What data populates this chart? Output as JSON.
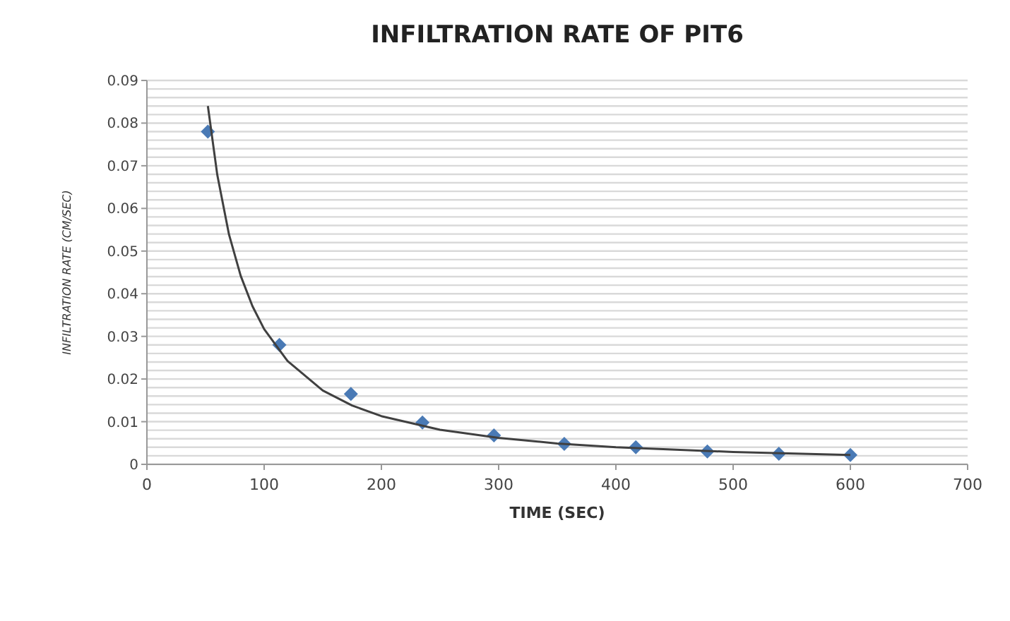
{
  "chart_data": {
    "type": "scatter",
    "title": "INFILTRATION RATE OF PIT6",
    "xlabel": "TIME (SEC)",
    "ylabel": "INFILTRATION RATE (CM/SEC)",
    "x": [
      52,
      113,
      174,
      235,
      296,
      356,
      417,
      478,
      539,
      600
    ],
    "series": [
      {
        "color": "#4a7ab5",
        "marker": "diamond",
        "values": [
          0.078,
          0.028,
          0.0165,
          0.0098,
          0.0068,
          0.0048,
          0.004,
          0.003,
          0.0025,
          0.0022
        ]
      },
      {
        "type": "line",
        "color": "#404040",
        "marker": "none",
        "x": [
          52,
          60,
          70,
          80,
          90,
          100,
          120,
          150,
          175,
          200,
          250,
          300,
          350,
          400,
          500,
          600
        ],
        "values": [
          0.084,
          0.0679,
          0.0539,
          0.0442,
          0.0371,
          0.0317,
          0.0242,
          0.0173,
          0.0138,
          0.0113,
          0.0081,
          0.0062,
          0.0049,
          0.004,
          0.0029,
          0.0022
        ]
      }
    ],
    "xlim": [
      0,
      700
    ],
    "xticks": [
      0,
      100,
      200,
      300,
      400,
      500,
      600,
      700
    ],
    "ylim": [
      0,
      0.09
    ],
    "yticks": [
      0,
      {
        "value": 0.002,
        "label": null
      },
      {
        "value": 0.004,
        "label": null
      },
      {
        "value": 0.006,
        "label": null
      },
      {
        "value": 0.008,
        "label": null
      },
      0.01,
      {
        "value": 0.012,
        "label": null
      },
      {
        "value": 0.014,
        "label": null
      },
      {
        "value": 0.016,
        "label": null
      },
      {
        "value": 0.018,
        "label": null
      },
      0.02,
      {
        "value": 0.022,
        "label": null
      },
      {
        "value": 0.024,
        "label": null
      },
      {
        "value": 0.026,
        "label": null
      },
      {
        "value": 0.028,
        "label": null
      },
      0.03,
      {
        "value": 0.032,
        "label": null
      },
      {
        "value": 0.034,
        "label": null
      },
      {
        "value": 0.036,
        "label": null
      },
      {
        "value": 0.038,
        "label": null
      },
      0.04,
      {
        "value": 0.042,
        "label": null
      },
      {
        "value": 0.044,
        "label": null
      },
      {
        "value": 0.046,
        "label": null
      },
      {
        "value": 0.048,
        "label": null
      },
      0.05,
      {
        "value": 0.052,
        "label": null
      },
      {
        "value": 0.054,
        "label": null
      },
      {
        "value": 0.056,
        "label": null
      },
      {
        "value": 0.058,
        "label": null
      },
      0.06,
      {
        "value": 0.062,
        "label": null
      },
      {
        "value": 0.064,
        "label": null
      },
      {
        "value": 0.066,
        "label": null
      },
      {
        "value": 0.068,
        "label": null
      },
      0.07,
      {
        "value": 0.072,
        "label": null
      },
      {
        "value": 0.074,
        "label": null
      },
      {
        "value": 0.076,
        "label": null
      },
      {
        "value": 0.078,
        "label": null
      },
      0.08,
      {
        "value": 0.082,
        "label": null
      },
      {
        "value": 0.084,
        "label": null
      },
      {
        "value": 0.086,
        "label": null
      },
      {
        "value": 0.088,
        "label": null
      },
      0.09
    ],
    "grid": "y",
    "line_style": "solid"
  }
}
